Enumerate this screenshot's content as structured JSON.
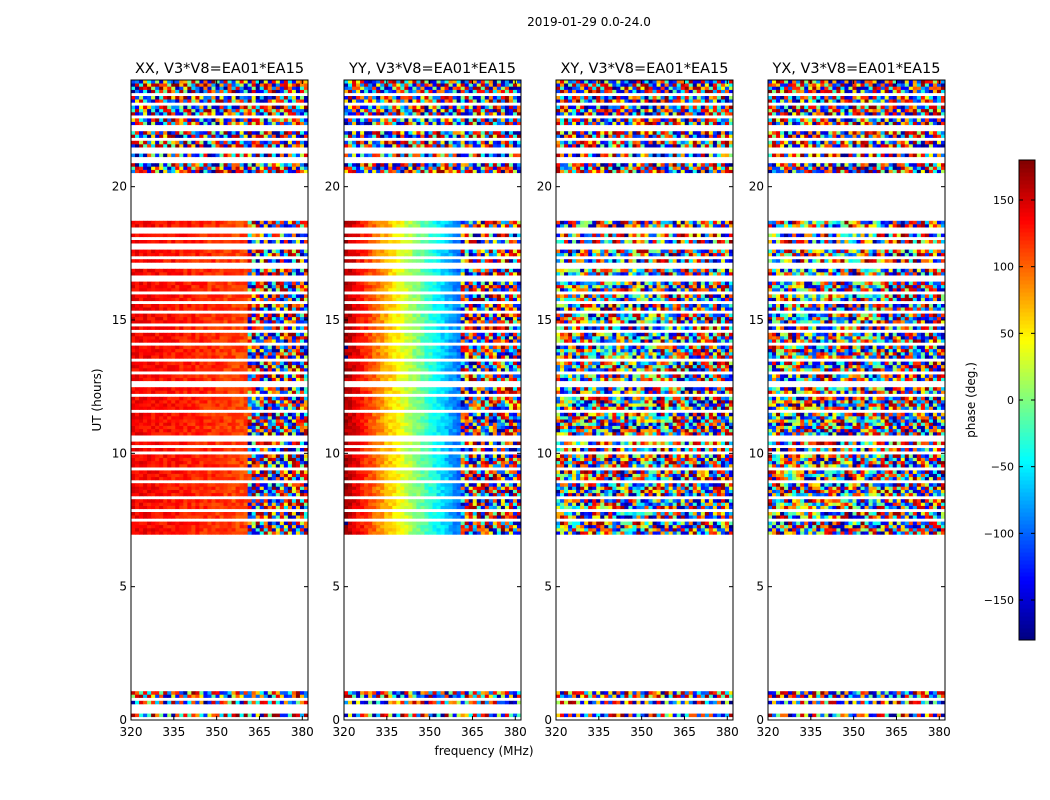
{
  "figure": {
    "suptitle": "2019-01-29 0.0-24.0",
    "xlabel": "frequency (MHz)",
    "ylabel": "UT (hours)"
  },
  "colors": {
    "axes": "#000000",
    "background": "#ffffff",
    "jet": [
      "#00007f",
      "#0000ff",
      "#007fff",
      "#00ffff",
      "#7fff7f",
      "#ffff00",
      "#ff7f00",
      "#ff0000",
      "#7f0000"
    ]
  },
  "chart_data": {
    "type": "heatmap",
    "title": "2019-01-29 0.0-24.0",
    "xlabel": "frequency (MHz)",
    "ylabel": "UT (hours)",
    "xlim": [
      320,
      382
    ],
    "ylim": [
      0,
      24
    ],
    "xticks": [
      320,
      335,
      350,
      365,
      380
    ],
    "yticks": [
      0,
      5,
      10,
      15,
      20
    ],
    "valid_time_ranges": [
      [
        0.1,
        1.1
      ],
      [
        6.9,
        18.7
      ],
      [
        20.5,
        24.0
      ]
    ],
    "flagged_times": [
      0.35,
      0.55,
      0.75,
      7.5,
      7.85,
      8.35,
      8.9,
      9.4,
      10.0,
      10.3,
      10.55,
      11.55,
      12.15,
      12.6,
      13.05,
      13.5,
      14.1,
      14.55,
      14.8,
      15.3,
      15.7,
      16.0,
      16.55,
      17.05,
      17.35,
      17.75,
      18.05,
      18.35,
      21.0,
      21.35,
      21.8,
      22.2,
      22.6,
      23.1,
      23.5
    ],
    "panels": [
      {
        "title": "XX, V3*V8=EA01*EA15",
        "pattern": "gradient",
        "phase_low_freq": 140,
        "phase_high_freq": 110,
        "noise_onset_mhz": 361
      },
      {
        "title": "YY, V3*V8=EA01*EA15",
        "pattern": "gradient",
        "phase_low_freq": 170,
        "phase_high_freq": -100,
        "noise_onset_mhz": 361
      },
      {
        "title": "XY, V3*V8=EA01*EA15",
        "pattern": "noise",
        "phase_low_freq": 0,
        "phase_high_freq": 0,
        "noise_onset_mhz": 320
      },
      {
        "title": "YX, V3*V8=EA01*EA15",
        "pattern": "noise",
        "phase_low_freq": 0,
        "phase_high_freq": 0,
        "noise_onset_mhz": 320
      }
    ],
    "colorbar": {
      "label": "phase (deg.)",
      "range": [
        -180,
        180
      ],
      "ticks": [
        150,
        100,
        50,
        0,
        -50,
        -100,
        -150
      ],
      "tick_labels": [
        "150",
        "100",
        "50",
        "0",
        "−50",
        "−100",
        "−150"
      ],
      "colormap": "jet"
    }
  }
}
